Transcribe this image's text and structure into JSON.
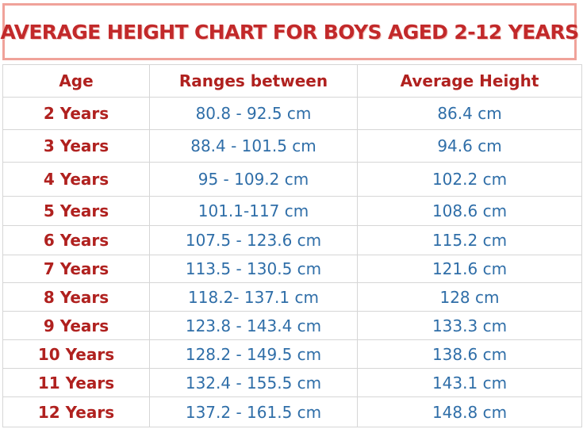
{
  "title": "Average Height Chart for Boys Aged 2-12 Years",
  "table": {
    "headers": [
      "Age",
      "Ranges between",
      "Average Height"
    ],
    "rows": [
      {
        "age": "2 Years",
        "range": "80.8 - 92.5 cm",
        "average": "86.4 cm"
      },
      {
        "age": "3 Years",
        "range": "88.4 - 101.5 cm",
        "average": "94.6 cm"
      },
      {
        "age": "4 Years",
        "range": "95 - 109.2 cm",
        "average": "102.2 cm"
      },
      {
        "age": "5 Years",
        "range": "101.1-117 cm",
        "average": "108.6 cm"
      },
      {
        "age": "6 Years",
        "range": "107.5 - 123.6 cm",
        "average": "115.2 cm"
      },
      {
        "age": "7 Years",
        "range": "113.5 - 130.5 cm",
        "average": "121.6 cm"
      },
      {
        "age": "8 Years",
        "range": "118.2- 137.1 cm",
        "average": "128 cm"
      },
      {
        "age": "9 Years",
        "range": "123.8 - 143.4 cm",
        "average": "133.3 cm"
      },
      {
        "age": "10 Years",
        "range": "128.2 - 149.5 cm",
        "average": "138.6 cm"
      },
      {
        "age": "11 Years",
        "range": "132.4 - 155.5 cm",
        "average": "143.1 cm"
      },
      {
        "age": "12 Years",
        "range": "137.2 - 161.5 cm",
        "average": "148.8 cm"
      }
    ]
  }
}
